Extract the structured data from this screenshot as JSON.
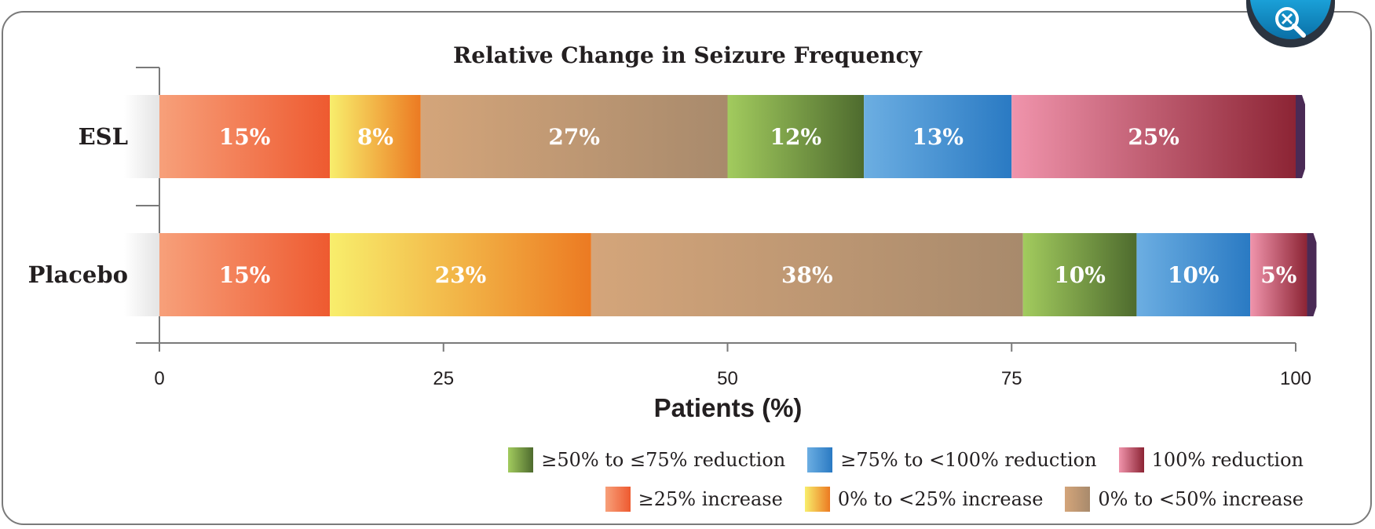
{
  "chart_data": {
    "type": "bar",
    "orientation": "horizontal",
    "stacked": true,
    "title": "Relative Change in Seizure Frequency",
    "xlabel": "Patients (%)",
    "ylabel": "",
    "xlim": [
      0,
      100
    ],
    "x_ticks": [
      "0",
      "25",
      "50",
      "75",
      "100"
    ],
    "categories": [
      "ESL",
      "Placebo"
    ],
    "series": [
      {
        "name": "≥25% increase",
        "color": "#ee5a30",
        "color_light": "#f7a07a",
        "values": [
          15,
          15
        ],
        "labels": [
          "15%",
          "15%"
        ]
      },
      {
        "name": "0% to <25% increase",
        "color": "#ec7a22",
        "color_light": "#f8ee6c",
        "values": [
          8,
          23
        ],
        "labels": [
          "8%",
          "23%"
        ]
      },
      {
        "name": "0% to <50% increase",
        "color": "#a88a6c",
        "color_light": "#d4a57a",
        "values": [
          27,
          38
        ],
        "labels": [
          "27%",
          "38%"
        ]
      },
      {
        "name": "≥50% to ≤75% reduction",
        "color": "#4e6b2e",
        "color_light": "#a2cb5e",
        "values": [
          12,
          10
        ],
        "labels": [
          "12%",
          "10%"
        ]
      },
      {
        "name": "≥75% to <100% reduction",
        "color": "#2a7ac3",
        "color_light": "#6caee2",
        "values": [
          13,
          10
        ],
        "labels": [
          "13%",
          "10%"
        ]
      },
      {
        "name": "100% reduction",
        "color": "#8c2434",
        "color_light": "#f094ac",
        "values": [
          25,
          5
        ],
        "labels": [
          "25%",
          "5%"
        ]
      }
    ],
    "legend_position": "bottom-right",
    "grid": false
  },
  "legend": {
    "row1": [
      "≥50% to ≤75% reduction",
      "≥75% to <100% reduction",
      "100% reduction"
    ],
    "row2": [
      "≥25% increase",
      "0% to <25% increase",
      "0% to <50% increase"
    ]
  },
  "zoom_icon": "magnify-zoom-icon"
}
